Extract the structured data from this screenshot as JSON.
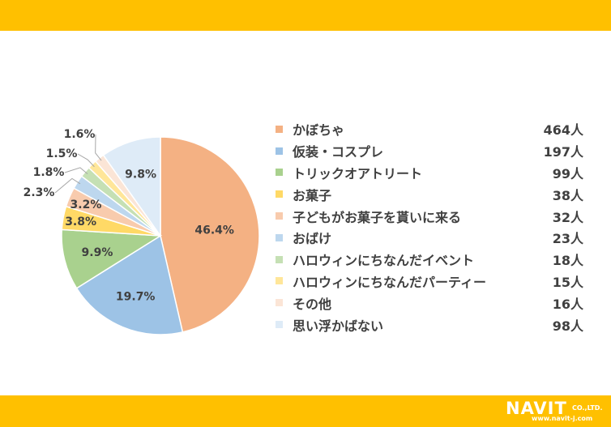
{
  "colors": {
    "band": "#FFC000",
    "label_text": "#404040",
    "leader_line": "#A6A6A6"
  },
  "chart_data": {
    "type": "pie",
    "slices": [
      {
        "label": "かぼちゃ",
        "count": "464人",
        "value": 46.4,
        "pct_label": "46.4%",
        "color": "#F4B183"
      },
      {
        "label": "仮装・コスプレ",
        "count": "197人",
        "value": 19.7,
        "pct_label": "19.7%",
        "color": "#9DC3E6"
      },
      {
        "label": "トリックオアトリート",
        "count": "99人",
        "value": 9.9,
        "pct_label": "9.9%",
        "color": "#A9D18E"
      },
      {
        "label": "お菓子",
        "count": "38人",
        "value": 3.8,
        "pct_label": "3.8%",
        "color": "#FFD966"
      },
      {
        "label": "子どもがお菓子を貰いに来る",
        "count": "32人",
        "value": 3.2,
        "pct_label": "3.2%",
        "color": "#F8CBAD"
      },
      {
        "label": "おばけ",
        "count": "23人",
        "value": 2.3,
        "pct_label": "2.3%",
        "color": "#BDD7EE"
      },
      {
        "label": "ハロウィンにちなんだイベント",
        "count": "18人",
        "value": 1.8,
        "pct_label": "1.8%",
        "color": "#C5E0B4"
      },
      {
        "label": "ハロウィンにちなんだパーティー",
        "count": "15人",
        "value": 1.5,
        "pct_label": "1.5%",
        "color": "#FFE699"
      },
      {
        "label": "その他",
        "count": "16人",
        "value": 1.6,
        "pct_label": "1.6%",
        "color": "#FBE5D6"
      },
      {
        "label": "思い浮かばない",
        "count": "98人",
        "value": 9.8,
        "pct_label": "9.8%",
        "color": "#DEEBF7"
      }
    ],
    "start_angle_deg": 0,
    "direction": "clockwise",
    "legend_position": "right"
  },
  "logo": {
    "brand": "NAVIT",
    "company_suffix": "CO.,LTD.",
    "url": "www.navit-j.com"
  }
}
